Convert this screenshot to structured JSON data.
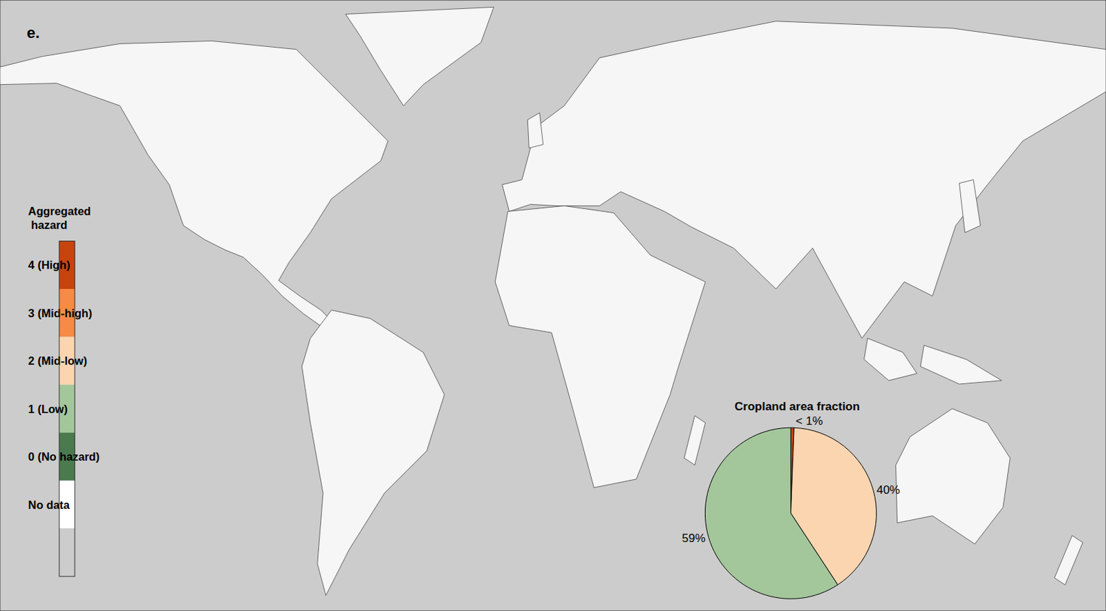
{
  "panel_label": "e.",
  "legend_key": {
    "title": "Aggregated hazard",
    "items": [
      {
        "label": "4 (High)",
        "color": "#c8440d"
      },
      {
        "label": "3 (Mid-high)",
        "color": "#f58b44"
      },
      {
        "label": "2 (Mid-low)",
        "color": "#fbd5b0"
      },
      {
        "label": "1 (Low)",
        "color": "#a3c79b"
      },
      {
        "label": "0 (No hazard)",
        "color": "#4a7a4e"
      },
      {
        "label": "No data",
        "color": "#ffffff"
      },
      {
        "label": null,
        "color": "#cccccc"
      }
    ]
  },
  "chart_data": {
    "type": "pie",
    "title": "Cropland area fraction",
    "categories": [
      "4 (High)",
      "2 (Mid-low)",
      "1 (Low)"
    ],
    "values": [
      0.6,
      40,
      59
    ],
    "value_labels": [
      "< 1%",
      "40%",
      "59%"
    ],
    "colors": [
      "#c8440d",
      "#fbd5b0",
      "#a3c79b"
    ],
    "data_labels": true
  }
}
